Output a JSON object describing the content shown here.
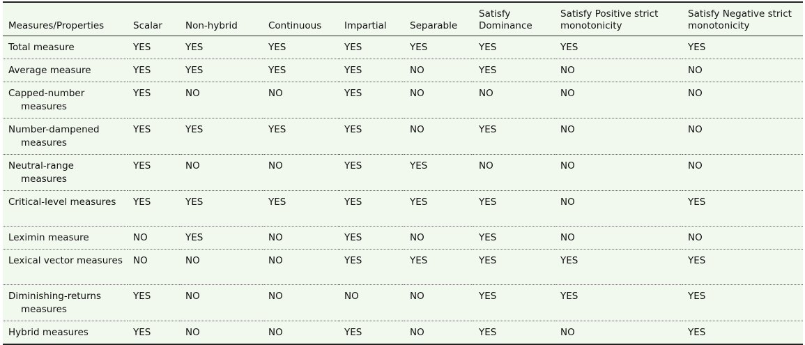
{
  "table": {
    "header": [
      "Measures/Properties",
      "Scalar",
      "Non-hybrid",
      "Continuous",
      "Impartial",
      "Separable",
      "Satisfy Dominance",
      "Satisfy Positive strict monotonicity",
      "Satisfy Negative strict monotonicity"
    ],
    "rows": [
      [
        "Total measure",
        "YES",
        "YES",
        "YES",
        "YES",
        "YES",
        "YES",
        "YES",
        "YES"
      ],
      [
        "Average measure",
        "YES",
        "YES",
        "YES",
        "YES",
        "NO",
        "YES",
        "NO",
        "NO"
      ],
      [
        "Capped-number measures",
        "YES",
        "NO",
        "NO",
        "YES",
        "NO",
        "NO",
        "NO",
        "NO"
      ],
      [
        "Number-dampened measures",
        "YES",
        "YES",
        "YES",
        "YES",
        "NO",
        "YES",
        "NO",
        "NO"
      ],
      [
        "Neutral-range measures",
        "YES",
        "NO",
        "NO",
        "YES",
        "YES",
        "NO",
        "NO",
        "NO"
      ],
      [
        "Critical-level measures",
        "YES",
        "YES",
        "YES",
        "YES",
        "YES",
        "YES",
        "NO",
        "YES"
      ],
      [
        "Leximin measure",
        "NO",
        "YES",
        "NO",
        "YES",
        "NO",
        "YES",
        "NO",
        "NO"
      ],
      [
        "Lexical vector measures",
        "NO",
        "NO",
        "NO",
        "YES",
        "YES",
        "YES",
        "YES",
        "YES"
      ],
      [
        "Diminishing-returns measures",
        "YES",
        "NO",
        "NO",
        "NO",
        "NO",
        "YES",
        "YES",
        "YES"
      ],
      [
        "Hybrid measures",
        "YES",
        "NO",
        "NO",
        "YES",
        "NO",
        "YES",
        "NO",
        "YES"
      ]
    ]
  }
}
